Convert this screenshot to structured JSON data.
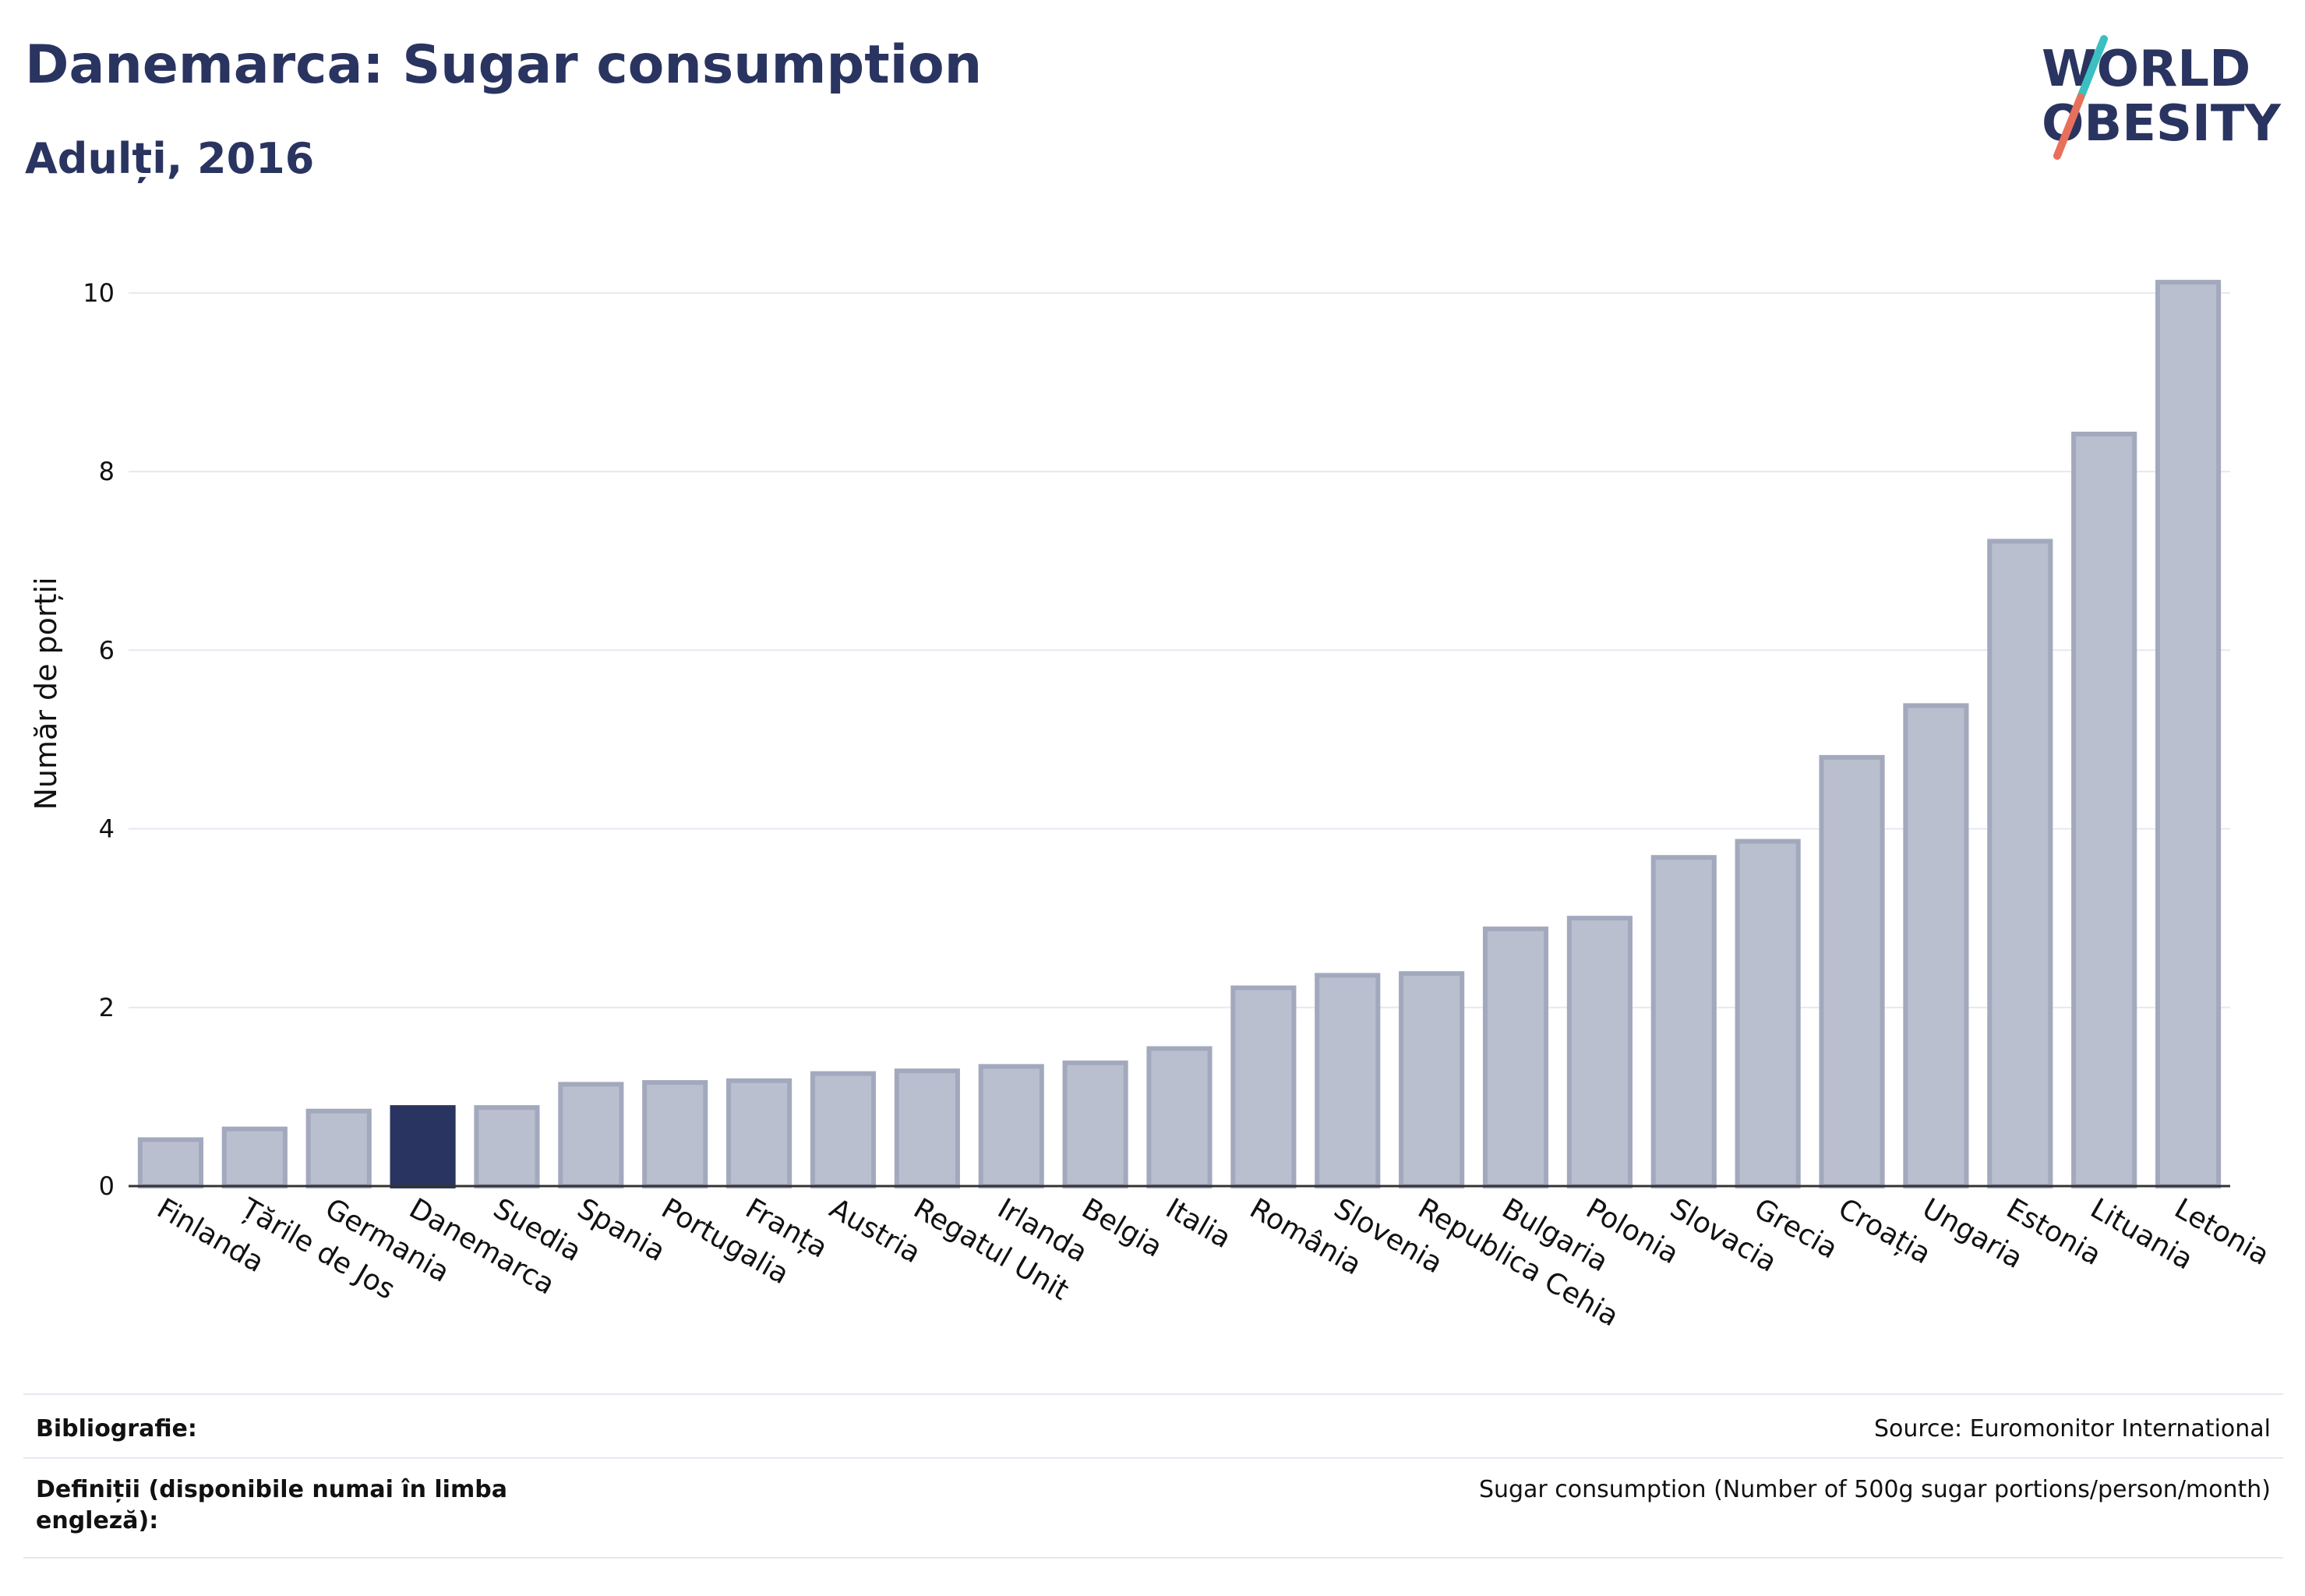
{
  "header": {
    "title": "Danemarca: Sugar consumption",
    "subtitle": "Adulți, 2016"
  },
  "logo": {
    "line1": "WORLD",
    "line2": "OBESITY",
    "colors": {
      "text": "#2a3460",
      "slash_top": "#3cbfc0",
      "slash_bottom": "#e8705a"
    }
  },
  "colors": {
    "bar": "#babfcf",
    "bar_stroke": "#a3a9bd",
    "highlight": "#2a3460",
    "grid": "#e6e8f0",
    "axis": "#333333"
  },
  "chart_data": {
    "type": "bar",
    "title": "",
    "xlabel": "",
    "ylabel": "Număr de porții",
    "ylim": [
      0,
      10.4
    ],
    "yticks": [
      0,
      2,
      4,
      6,
      8,
      10
    ],
    "grid": true,
    "highlight": "Danemarca",
    "categories": [
      "Finlanda",
      "Țările de Jos",
      "Germania",
      "Danemarca",
      "Suedia",
      "Spania",
      "Portugalia",
      "Franța",
      "Austria",
      "Regatul Unit",
      "Irlanda",
      "Belgia",
      "Italia",
      "România",
      "Slovenia",
      "Republica Cehia",
      "Bulgaria",
      "Polonia",
      "Slovacia",
      "Grecia",
      "Croația",
      "Ungaria",
      "Estonia",
      "Lituania",
      "Letonia"
    ],
    "values": [
      0.52,
      0.64,
      0.84,
      0.88,
      0.88,
      1.14,
      1.16,
      1.18,
      1.26,
      1.29,
      1.34,
      1.38,
      1.54,
      2.22,
      2.36,
      2.38,
      2.88,
      3.0,
      3.68,
      3.86,
      4.8,
      5.38,
      7.22,
      8.42,
      10.12
    ]
  },
  "footer": {
    "bibliography_label": "Bibliografie:",
    "bibliography_value": "Source: Euromonitor International",
    "definitions_label": "Definiții (disponibile numai în limba engleză):",
    "definitions_value": "Sugar consumption (Number of 500g sugar portions/person/month)"
  }
}
